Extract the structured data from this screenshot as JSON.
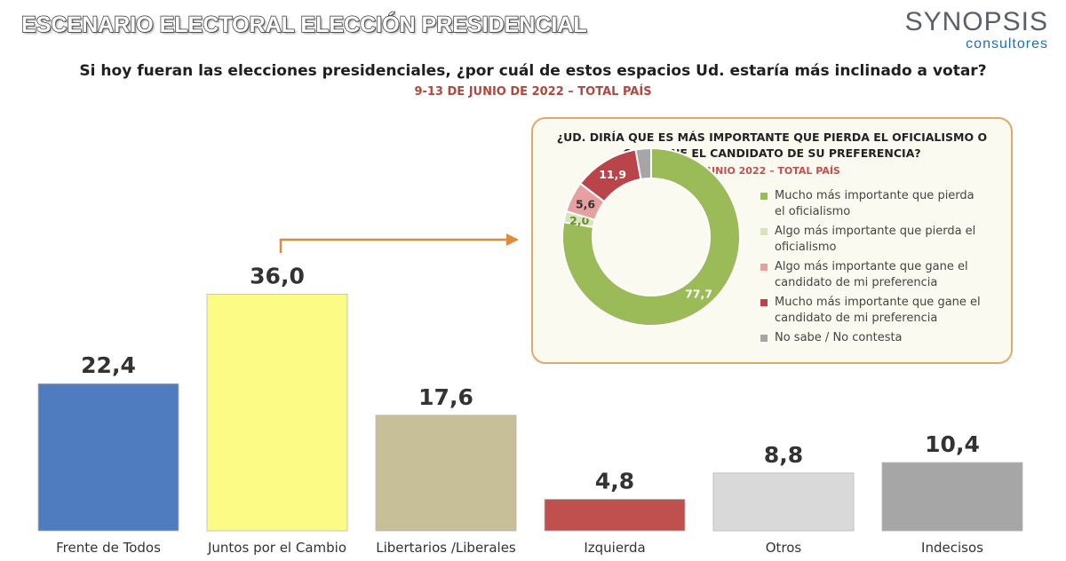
{
  "header": {
    "banner": "ESCENARIO ELECTORAL ELECCIÓN PRESIDENCIAL",
    "logo_main": "SYNOPSIS",
    "logo_sub": "consultores"
  },
  "question": "Si hoy fueran las elecciones presidenciales, ¿por cuál de estos espacios Ud. estaría más inclinado a votar?",
  "date": "9-13 DE JUNIO DE 2022 – TOTAL PAÍS",
  "chart_data": [
    {
      "type": "bar",
      "categories": [
        "Frente de Todos",
        "Juntos por el Cambio",
        "Libertarios /Liberales",
        "Izquierda",
        "Otros",
        "Indecisos"
      ],
      "values": [
        22.4,
        36.0,
        17.6,
        4.8,
        8.8,
        10.4
      ],
      "value_labels": [
        "22,4",
        "36,0",
        "17,6",
        "4,8",
        "8,8",
        "10,4"
      ],
      "colors": [
        "#4f7cbf",
        "#fbfb86",
        "#c6bf97",
        "#c0504d",
        "#d9d9d9",
        "#a6a6a6"
      ],
      "ylim": [
        0,
        40
      ]
    },
    {
      "type": "pie",
      "title_line1": "¿UD. DIRÍA QUE ES MÁS IMPORTANTE QUE PIERDA EL OFICIALISMO O",
      "title_line2": "QUE GANE EL CANDIDATO DE SU PREFERENCIA?",
      "subtitle": "JUNIO 2022 – TOTAL PAÍS",
      "legend_position": "right",
      "slices": [
        {
          "label_line1": "Mucho más importante que pierda",
          "label_line2": "el oficialismo",
          "value": 77.7,
          "value_label": "77,7",
          "color": "#9bbb59"
        },
        {
          "label_line1": "Algo más importante que pierda el",
          "label_line2": "oficialismo",
          "value": 2.0,
          "value_label": "2,0",
          "color": "#d7e4bd"
        },
        {
          "label_line1": "Algo más importante que gane el",
          "label_line2": "candidato de mi preferencia",
          "value": 5.6,
          "value_label": "5,6",
          "color": "#e6a0a0"
        },
        {
          "label_line1": "Mucho más importante que gane el",
          "label_line2": "candidato de mi preferencia",
          "value": 11.9,
          "value_label": "11,9",
          "color": "#b9454a"
        },
        {
          "label_line1": "No sabe / No contesta",
          "label_line2": "",
          "value": 2.8,
          "value_label": "",
          "color": "#a6a6a6"
        }
      ]
    }
  ]
}
